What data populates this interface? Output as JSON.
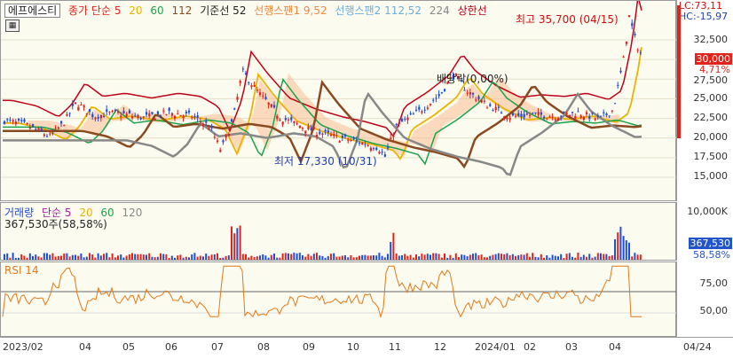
{
  "legend": {
    "stock": "에프에스티",
    "close_ma": "종가 단순 5",
    "ma20": "20",
    "ma60": "60",
    "ma112": "112",
    "base_line": "기준선 52",
    "span1": "선행스팬1 9,52",
    "span2": "선행스팬2 112,52",
    "ma224": "224",
    "limit": "상한선"
  },
  "price_axis": {
    "ticks": [
      "32,500",
      "30,000",
      "27,500",
      "25,000",
      "22,500",
      "20,000",
      "17,500",
      "15,000"
    ],
    "lc": "LC:73,11",
    "hc": "HC:-15,97",
    "current": "30,000",
    "change": "4,71%"
  },
  "annotations": {
    "high": "최고 35,700 (04/15)",
    "low": "최저 17,330 (10/31)",
    "dividend": "배당락(0,00%)"
  },
  "volume": {
    "title": "거래량",
    "ma_label": "단순 5",
    "ma20": "20",
    "ma60": "60",
    "ma120": "120",
    "value": "367,530주(58,58%)",
    "axis_max": "10,000K",
    "current": "367,530",
    "pct": "58,58%"
  },
  "rsi": {
    "title": "RSI 14",
    "ticks": [
      "75,00",
      "50,00"
    ]
  },
  "x_axis": {
    "labels": [
      "2023/02",
      "04",
      "05",
      "06",
      "07",
      "08",
      "09",
      "10",
      "11",
      "12",
      "2024/01",
      "02",
      "03",
      "04",
      "04/24"
    ]
  },
  "colors": {
    "up": "#e0241c",
    "down": "#1f4fd6",
    "ma5": "#e0241c",
    "ma20": "#e8b400",
    "ma60": "#1aa34a",
    "ma112": "#8a4a20",
    "ma224": "#888888",
    "cloud_up": "#f7b88a",
    "cloud_down": "#8fc5ea",
    "rsi": "#e07a1a"
  }
}
